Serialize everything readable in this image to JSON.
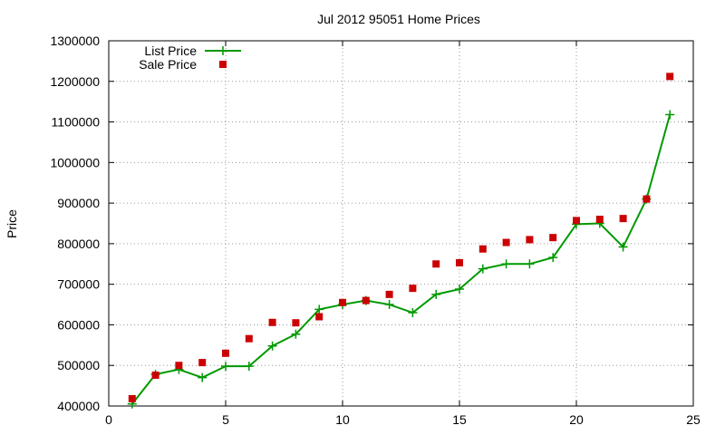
{
  "chart_data": {
    "type": "line",
    "title": "Jul 2012 95051 Home Prices",
    "ylabel": "Price",
    "xlabel": "",
    "xlim": [
      0,
      25
    ],
    "ylim": [
      400000,
      1300000
    ],
    "xticks": [
      0,
      5,
      10,
      15,
      20,
      25
    ],
    "yticks": [
      400000,
      500000,
      600000,
      700000,
      800000,
      900000,
      1000000,
      1100000,
      1200000,
      1300000
    ],
    "grid": true,
    "legend_position": "top-left",
    "series": [
      {
        "name": "List Price",
        "style": "line-with-plus-markers",
        "color": "#009900",
        "x": [
          1,
          2,
          3,
          4,
          5,
          6,
          7,
          8,
          9,
          10,
          11,
          12,
          13,
          14,
          15,
          16,
          17,
          18,
          19,
          20,
          21,
          22,
          23,
          24
        ],
        "y": [
          405000,
          478000,
          490000,
          470000,
          498000,
          498000,
          548000,
          577000,
          638000,
          650000,
          660000,
          650000,
          630000,
          675000,
          688000,
          738000,
          750000,
          750000,
          766000,
          848000,
          850000,
          792000,
          910000,
          1118000
        ]
      },
      {
        "name": "Sale Price",
        "style": "square-markers",
        "color": "#cc0000",
        "x": [
          1,
          2,
          3,
          4,
          5,
          6,
          7,
          8,
          9,
          10,
          11,
          12,
          13,
          14,
          15,
          16,
          17,
          18,
          19,
          20,
          21,
          22,
          23,
          24
        ],
        "y": [
          418000,
          476000,
          500000,
          507000,
          530000,
          566000,
          606000,
          605000,
          620000,
          655000,
          660000,
          675000,
          690000,
          750000,
          753000,
          787000,
          803000,
          810000,
          815000,
          857000,
          860000,
          862000,
          910000,
          1212000
        ]
      }
    ]
  }
}
